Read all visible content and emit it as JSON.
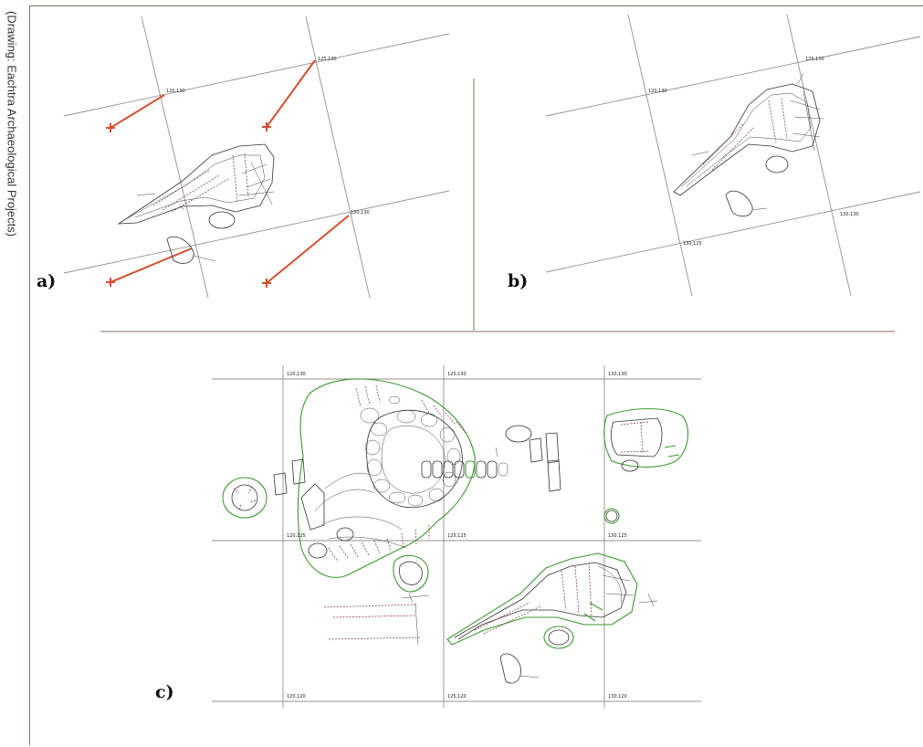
{
  "credit": "(Drawing: Eachtra Archaeological Projects)",
  "panels": {
    "a": {
      "label": "a)",
      "grid_labels": [
        "120,130",
        "125,130",
        "130,130"
      ]
    },
    "b": {
      "label": "b)",
      "grid_labels": [
        "120,130",
        "125,130",
        "130,130",
        "130,125"
      ]
    },
    "c": {
      "label": "c)",
      "grid_labels": [
        "120,130",
        "125,130",
        "130,130",
        "120,125",
        "125,125",
        "130,125",
        "120,120",
        "125,120",
        "130,120"
      ]
    }
  },
  "colors": {
    "grid": "#9a8e8e",
    "ink": "#333333",
    "hachure": "#7a2a2a",
    "excavation_outline": "#3b9a2e",
    "correction_arrow": "#d2512f",
    "divider": "#8a7060"
  }
}
